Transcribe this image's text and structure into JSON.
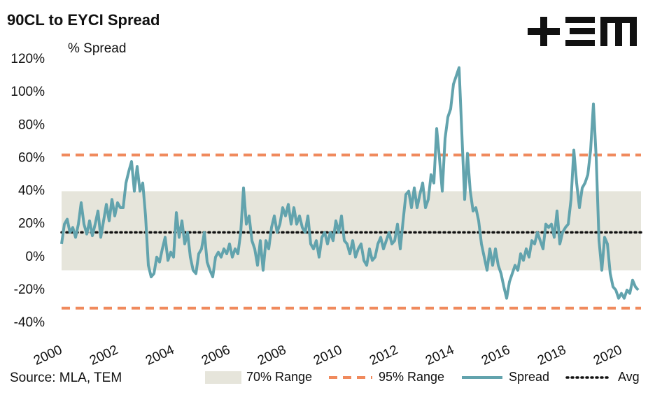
{
  "chart_data": {
    "type": "line",
    "title": "90CL to EYCI Spread",
    "y_label": "% Spread",
    "source": "Source: MLA, TEM",
    "x": [
      2000,
      2000.1,
      2000.2,
      2000.3,
      2000.4,
      2000.5,
      2000.6,
      2000.7,
      2000.8,
      2000.9,
      2001,
      2001.1,
      2001.2,
      2001.3,
      2001.4,
      2001.5,
      2001.6,
      2001.7,
      2001.8,
      2001.9,
      2002,
      2002.1,
      2002.2,
      2002.3,
      2002.4,
      2002.5,
      2002.6,
      2002.7,
      2002.8,
      2002.9,
      2003,
      2003.1,
      2003.2,
      2003.3,
      2003.4,
      2003.5,
      2003.6,
      2003.7,
      2003.8,
      2003.9,
      2004,
      2004.1,
      2004.2,
      2004.3,
      2004.4,
      2004.5,
      2004.6,
      2004.7,
      2004.8,
      2004.9,
      2005,
      2005.1,
      2005.2,
      2005.3,
      2005.4,
      2005.5,
      2005.6,
      2005.7,
      2005.8,
      2005.9,
      2006,
      2006.1,
      2006.2,
      2006.3,
      2006.4,
      2006.5,
      2006.6,
      2006.7,
      2006.8,
      2006.9,
      2007,
      2007.1,
      2007.2,
      2007.3,
      2007.4,
      2007.5,
      2007.6,
      2007.7,
      2007.8,
      2007.9,
      2008,
      2008.1,
      2008.2,
      2008.3,
      2008.4,
      2008.5,
      2008.6,
      2008.7,
      2008.8,
      2008.9,
      2009,
      2009.1,
      2009.2,
      2009.3,
      2009.4,
      2009.5,
      2009.6,
      2009.7,
      2009.8,
      2009.9,
      2010,
      2010.1,
      2010.2,
      2010.3,
      2010.4,
      2010.5,
      2010.6,
      2010.7,
      2010.8,
      2010.9,
      2011,
      2011.1,
      2011.2,
      2011.3,
      2011.4,
      2011.5,
      2011.6,
      2011.7,
      2011.8,
      2011.9,
      2012,
      2012.1,
      2012.2,
      2012.3,
      2012.4,
      2012.5,
      2012.6,
      2012.7,
      2012.8,
      2012.9,
      2013,
      2013.1,
      2013.2,
      2013.3,
      2013.4,
      2013.5,
      2013.6,
      2013.7,
      2013.8,
      2013.9,
      2014,
      2014.1,
      2014.2,
      2014.3,
      2014.4,
      2014.5,
      2014.6,
      2014.7,
      2014.8,
      2014.9,
      2015,
      2015.1,
      2015.2,
      2015.3,
      2015.4,
      2015.5,
      2015.6,
      2015.7,
      2015.8,
      2015.9,
      2016,
      2016.1,
      2016.2,
      2016.3,
      2016.4,
      2016.5,
      2016.6,
      2016.7,
      2016.8,
      2016.9,
      2017,
      2017.1,
      2017.2,
      2017.3,
      2017.4,
      2017.5,
      2017.6,
      2017.7,
      2017.8,
      2017.9,
      2018,
      2018.1,
      2018.2,
      2018.3,
      2018.4,
      2018.5,
      2018.6,
      2018.7,
      2018.8,
      2018.9,
      2019,
      2019.1,
      2019.2,
      2019.3,
      2019.4,
      2019.5,
      2019.6,
      2019.7,
      2019.8,
      2019.9,
      2020,
      2020.1,
      2020.2,
      2020.3,
      2020.4,
      2020.5,
      2020.6
    ],
    "series": [
      {
        "name": "Spread",
        "color": "#62a3ad",
        "values": [
          8,
          20,
          23,
          15,
          18,
          12,
          20,
          33,
          20,
          14,
          22,
          13,
          20,
          28,
          12,
          22,
          32,
          22,
          35,
          25,
          33,
          30,
          30,
          45,
          52,
          58,
          40,
          55,
          40,
          45,
          25,
          -5,
          -12,
          -10,
          0,
          -3,
          5,
          12,
          -2,
          3,
          0,
          27,
          12,
          22,
          8,
          15,
          0,
          -8,
          -10,
          2,
          5,
          15,
          -3,
          -8,
          -12,
          0,
          3,
          0,
          5,
          2,
          8,
          0,
          5,
          2,
          15,
          42,
          20,
          25,
          10,
          5,
          -5,
          10,
          -8,
          10,
          5,
          18,
          25,
          15,
          20,
          30,
          25,
          32,
          20,
          30,
          20,
          25,
          18,
          15,
          25,
          8,
          5,
          10,
          0,
          12,
          15,
          8,
          15,
          10,
          22,
          15,
          25,
          10,
          8,
          2,
          10,
          0,
          5,
          8,
          -2,
          -5,
          5,
          -2,
          0,
          8,
          12,
          5,
          10,
          15,
          8,
          10,
          20,
          5,
          22,
          38,
          40,
          30,
          42,
          30,
          38,
          45,
          30,
          35,
          50,
          45,
          78,
          60,
          40,
          72,
          85,
          90,
          105,
          110,
          115,
          75,
          35,
          63,
          40,
          28,
          30,
          22,
          8,
          0,
          -8,
          5,
          -5,
          5,
          -5,
          -10,
          -18,
          -25,
          -15,
          -10,
          -5,
          -8,
          2,
          -2,
          5,
          0,
          10,
          8,
          15,
          10,
          5,
          20,
          18,
          20,
          12,
          28,
          8,
          15,
          18,
          20,
          35,
          65,
          45,
          30,
          42,
          45,
          50,
          65,
          93,
          60,
          10,
          -8,
          12,
          8,
          -10,
          -18,
          -20,
          -25,
          -22,
          -25,
          -20,
          -22,
          -14,
          -18,
          -20
        ]
      }
    ],
    "bands": [
      {
        "name": "70% Range",
        "low": -8,
        "high": 40,
        "color": "#e6e5db"
      }
    ],
    "reference_lines": [
      {
        "name": "95% Range",
        "values": [
          62,
          -31
        ],
        "color": "#f08a5d",
        "style": "dashed"
      },
      {
        "name": "Avg",
        "values": [
          15
        ],
        "color": "#111111",
        "style": "dotted"
      }
    ],
    "xlim": [
      2000,
      2020.7
    ],
    "xticks": [
      2000,
      2002,
      2004,
      2006,
      2008,
      2010,
      2012,
      2014,
      2016,
      2018,
      2020
    ],
    "ylim": [
      -45,
      125
    ],
    "yticks": [
      {
        "value": -40,
        "label": "-40%"
      },
      {
        "value": -20,
        "label": "-20%"
      },
      {
        "value": 0,
        "label": "0%"
      },
      {
        "value": 20,
        "label": "20%"
      },
      {
        "value": 40,
        "label": "40%"
      },
      {
        "value": 60,
        "label": "60%"
      },
      {
        "value": 80,
        "label": "80%"
      },
      {
        "value": 100,
        "label": "100%"
      },
      {
        "value": 120,
        "label": "120%"
      }
    ],
    "grid": false,
    "legend": "bottom"
  }
}
